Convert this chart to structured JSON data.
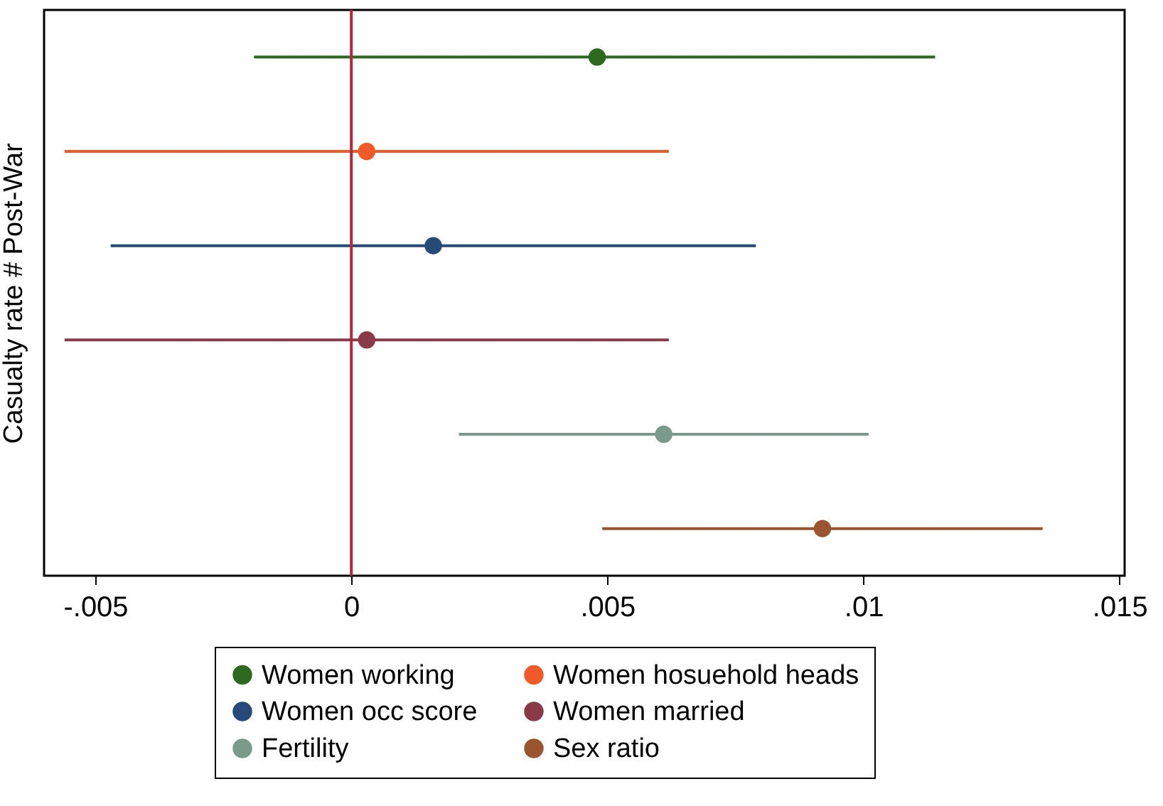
{
  "chart_data": {
    "type": "scatter",
    "orientation": "horizontal",
    "ylabel": "Casualty rate # Post-War",
    "categories": [
      null,
      null,
      null,
      null,
      null,
      null
    ],
    "series": [
      {
        "name": "Women working",
        "color": "#2d6a1f",
        "values": [
          0.0048,
          null,
          null,
          null,
          null,
          null
        ],
        "errors": [
          [
            -0.0019,
            0.0114
          ],
          null,
          null,
          null,
          null,
          null
        ]
      },
      {
        "name": "Women hosuehold heads",
        "color": "#f05a28",
        "values": [
          null,
          0.0003,
          null,
          null,
          null,
          null
        ],
        "errors": [
          null,
          [
            -0.0056,
            0.0062
          ],
          null,
          null,
          null,
          null
        ]
      },
      {
        "name": "Women occ score",
        "color": "#284a78",
        "values": [
          null,
          null,
          0.0016,
          null,
          null,
          null
        ],
        "errors": [
          null,
          null,
          [
            -0.0047,
            0.0079
          ],
          null,
          null,
          null
        ]
      },
      {
        "name": "Women married",
        "color": "#8a3a48",
        "values": [
          null,
          null,
          null,
          0.0003,
          null,
          null
        ],
        "errors": [
          null,
          null,
          null,
          [
            -0.0056,
            0.0062
          ],
          null,
          null
        ]
      },
      {
        "name": "Fertility",
        "color": "#7a9a8c",
        "values": [
          null,
          null,
          null,
          null,
          0.0061,
          null
        ],
        "errors": [
          null,
          null,
          null,
          null,
          [
            0.0021,
            0.0101
          ],
          null
        ]
      },
      {
        "name": "Sex ratio",
        "color": "#9a5530",
        "values": [
          null,
          null,
          null,
          null,
          null,
          0.0092
        ],
        "errors": [
          null,
          null,
          null,
          null,
          null,
          [
            0.0049,
            0.0135
          ]
        ]
      }
    ],
    "xlim": [
      -0.006,
      0.0151
    ],
    "xticks": [
      {
        "value": -0.005,
        "label": "-.005"
      },
      0,
      {
        "value": 0.005,
        "label": ".005"
      },
      {
        "value": 0.01,
        "label": ".01"
      },
      {
        "value": 0.015,
        "label": ".015"
      }
    ],
    "ref_lines": [
      {
        "axis": "x",
        "value": 0,
        "color": "#b0283c"
      }
    ],
    "legend": "bottom",
    "marker": "circle",
    "grid": false
  }
}
